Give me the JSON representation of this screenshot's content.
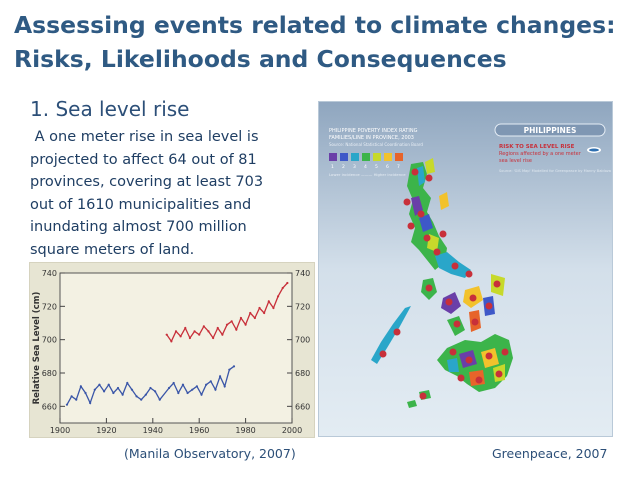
{
  "slide": {
    "title_line1": "Assessing events related to climate changes:",
    "title_line2": "Risks, Likelihoods and Consequences",
    "subhead": "1. Sea level rise",
    "body_lines": [
      " A one meter rise in sea level is",
      "projected to affect 64 out of 81",
      "provinces, covering at least 703",
      "out of 1610 municipalities and",
      "inundating almost 700 million",
      "square meters of land."
    ],
    "caption_left": "(Manila Observatory, 2007)",
    "caption_right": "Greenpeace, 2007"
  },
  "chart": {
    "ylabel": "Relative Sea Level (cm)",
    "y_ticks_left": [
      "740",
      "720",
      "700",
      "680",
      "660"
    ],
    "y_ticks_right": [
      "740",
      "720",
      "700",
      "680",
      "660"
    ],
    "x_ticks": [
      "1900",
      "1920",
      "1940",
      "1960",
      "1980",
      "2000"
    ]
  },
  "map": {
    "badge": "PHILIPPINES",
    "header_line1": "PHILIPPINE POVERTY INDEX RATING",
    "header_line2": "FAMILIES/LINE IN PROVINCE, 2003",
    "header_line3": "Source: National Statistical Coordination Board",
    "legend_numbers": [
      "1",
      "2",
      "3",
      "4",
      "5",
      "6",
      "7"
    ],
    "legend_note": "Lower incidence ——— Higher incidence",
    "risk_title": "RISK TO SEA LEVEL RISE",
    "risk_line2": "Regions affected by a one meter",
    "risk_line3": "sea level rise",
    "risk_source": "Source: 'GIS Map' Modelled for Greenpeace by Manny Baldoza"
  },
  "colors": {
    "title": "#2f5a83",
    "body": "#1f3e63",
    "series_red": "#c8303a",
    "series_blue": "#3a56a8",
    "map_bg": "#cfdce8",
    "chart_bg": "#e7e5d3"
  },
  "chart_data": {
    "type": "line",
    "xlabel": "",
    "ylabel": "Relative Sea Level (cm)",
    "xlim": [
      1900,
      2000
    ],
    "ylim": [
      650,
      740
    ],
    "series": [
      {
        "x": [
          1903,
          1905,
          1907,
          1909,
          1911,
          1913,
          1915,
          1917,
          1919,
          1921,
          1923,
          1925,
          1927,
          1929,
          1931,
          1933,
          1935,
          1937,
          1939,
          1941,
          1943,
          1947,
          1949,
          1951,
          1953,
          1955,
          1957,
          1959,
          1961,
          1963,
          1965,
          1967,
          1969,
          1971,
          1973,
          1975
        ],
        "values": [
          661,
          666,
          664,
          672,
          668,
          662,
          670,
          673,
          669,
          673,
          668,
          671,
          667,
          674,
          670,
          666,
          664,
          667,
          671,
          669,
          664,
          671,
          674,
          668,
          673,
          668,
          670,
          672,
          667,
          673,
          675,
          670,
          678,
          672,
          682,
          684
        ],
        "color": "#3a56a8"
      },
      {
        "x": [
          1946,
          1948,
          1950,
          1952,
          1954,
          1956,
          1958,
          1960,
          1962,
          1964,
          1966,
          1968,
          1970,
          1972,
          1974,
          1976,
          1978,
          1980,
          1982,
          1984,
          1986,
          1988,
          1990,
          1992,
          1994,
          1996,
          1998
        ],
        "values": [
          703,
          699,
          705,
          702,
          707,
          701,
          705,
          703,
          708,
          705,
          701,
          707,
          703,
          709,
          711,
          706,
          713,
          709,
          716,
          713,
          719,
          716,
          723,
          719,
          726,
          731,
          734
        ],
        "color": "#c8303a"
      }
    ]
  }
}
